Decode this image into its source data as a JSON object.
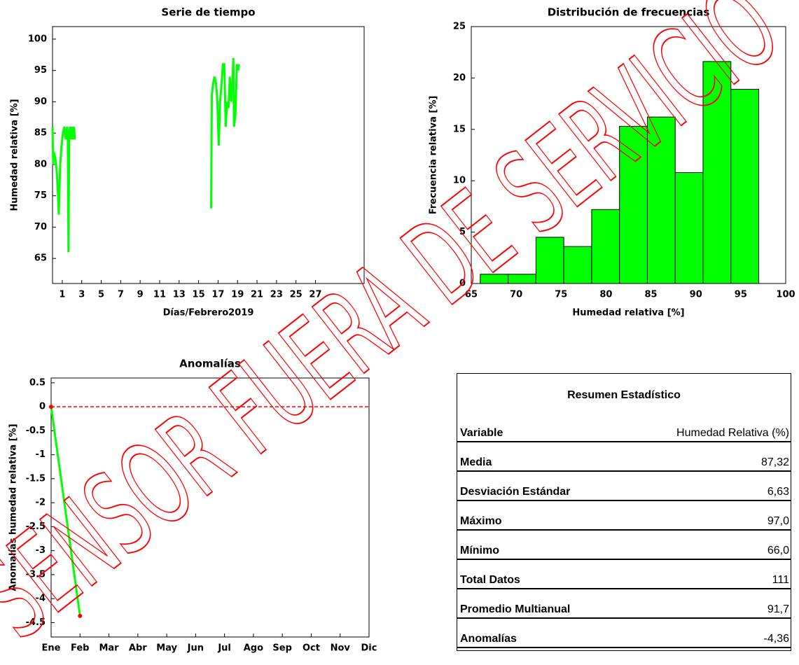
{
  "chart_data": [
    {
      "type": "line",
      "title": "Serie de tiempo",
      "xlabel": "Días/Febrero2019",
      "ylabel": "Humedad relativa [%]",
      "x": [
        0,
        0.07,
        0.14,
        0.29,
        0.43,
        0.57,
        0.64,
        0.79,
        0.93,
        1.07,
        1.21,
        1.36,
        1.5,
        1.57,
        1.64,
        1.71,
        1.79,
        1.93,
        2.0,
        2.14,
        2.21,
        2.29,
        null,
        16.29,
        16.36,
        16.5,
        16.64,
        16.79,
        16.93,
        17.07,
        17.21,
        17.36,
        17.5,
        17.64,
        17.79,
        17.93,
        18.07,
        18.21,
        18.36,
        18.5,
        18.57,
        18.64,
        18.79,
        18.93,
        19.07,
        19.14
      ],
      "series": [
        {
          "color": "#00ff00",
          "values": [
            86,
            80,
            82,
            81,
            79,
            75,
            72,
            80,
            83,
            85,
            86,
            84,
            86,
            85,
            66,
            84,
            86,
            84,
            86,
            84,
            86,
            84,
            null,
            73,
            91,
            93,
            94,
            93,
            90,
            83,
            90,
            93,
            96,
            96,
            86,
            90,
            89,
            94,
            90,
            94,
            97,
            86,
            88,
            96,
            95,
            96
          ]
        }
      ],
      "xlim": [
        0,
        32
      ],
      "xticks": [
        1,
        3,
        5,
        7,
        9,
        11,
        13,
        15,
        17,
        19,
        21,
        23,
        25,
        27
      ],
      "ylim": [
        61,
        102
      ],
      "yticks": [
        65,
        70,
        75,
        80,
        85,
        90,
        95,
        100
      ]
    },
    {
      "type": "histogram",
      "title": "Distribución de frecuencias",
      "xlabel": "Humedad relativa [%]",
      "ylabel": "Frecuencia relativa [%]",
      "bins": [
        66,
        69.1,
        72.2,
        75.3,
        78.4,
        81.5,
        84.6,
        87.7,
        90.8,
        93.9,
        97
      ],
      "values": [
        0.9,
        0.9,
        4.5,
        3.6,
        7.2,
        15.3,
        16.2,
        10.8,
        21.6,
        18.9
      ],
      "color": "#00ff00",
      "xlim": [
        65,
        100
      ],
      "xticks": [
        65,
        70,
        75,
        80,
        85,
        90,
        95,
        100
      ],
      "ylim": [
        0,
        25
      ],
      "yticks": [
        0,
        5,
        10,
        15,
        20,
        25
      ]
    },
    {
      "type": "line",
      "title": "Anomalías",
      "ylabel": "Anomalías humedad relativa [%]",
      "categories": [
        "Ene",
        "Feb",
        "Mar",
        "Abr",
        "May",
        "Jun",
        "Jul",
        "Ago",
        "Sep",
        "Oct",
        "Nov",
        "Dic"
      ],
      "series": [
        {
          "color": "#ff0000",
          "linestyle": "--",
          "values": [
            0,
            0,
            0,
            0,
            0,
            0,
            0,
            0,
            0,
            0,
            0,
            0
          ]
        },
        {
          "color": "#00ff00",
          "marker_color": "#ff0000",
          "values": [
            0,
            -4.36,
            null,
            null,
            null,
            null,
            null,
            null,
            null,
            null,
            null,
            null
          ]
        }
      ],
      "ylim": [
        -4.8,
        0.6
      ],
      "yticks": [
        0.5,
        0,
        -0.5,
        -1,
        -1.5,
        -2,
        -2.5,
        -3,
        -3.5,
        -4,
        -4.5
      ]
    }
  ],
  "table": {
    "title": "Resumen Estadístico",
    "rows": [
      [
        "Variable",
        "Humedad Relativa (%)"
      ],
      [
        "Media",
        "87,32"
      ],
      [
        "Desviación Estándar",
        "6,63"
      ],
      [
        "Máximo",
        "97,0"
      ],
      [
        "Mínimo",
        "66,0"
      ],
      [
        "Total Datos",
        "111"
      ],
      [
        "Promedio Multianual",
        "91,7"
      ],
      [
        "Anomalías",
        "-4,36"
      ]
    ]
  },
  "watermark": "SENSOR FUERA DE SERVICIO"
}
